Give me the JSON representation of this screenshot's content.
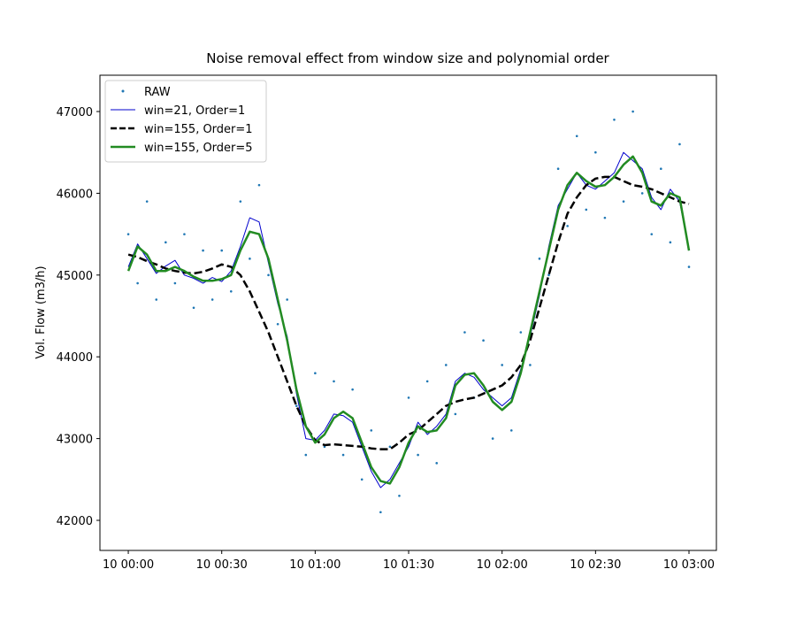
{
  "chart_data": {
    "type": "line",
    "title": "Noise removal effect from window size and polynomial order",
    "y_label": "Vol. Flow (m3/h)",
    "x": [
      0,
      3,
      6,
      9,
      12,
      15,
      18,
      21,
      24,
      27,
      30,
      33,
      36,
      39,
      42,
      45,
      48,
      51,
      54,
      57,
      60,
      63,
      66,
      69,
      72,
      75,
      78,
      81,
      84,
      87,
      90,
      93,
      96,
      99,
      102,
      105,
      108,
      111,
      114,
      117,
      120,
      123,
      126,
      129,
      132,
      135,
      138,
      141,
      144,
      147,
      150,
      153,
      156,
      159,
      162,
      165,
      168,
      171,
      174,
      177,
      180
    ],
    "xlim": [
      -9.1,
      188.8
    ],
    "xticks": [
      {
        "value": 0,
        "label": "10 00:00"
      },
      {
        "value": 30,
        "label": "10 00:30"
      },
      {
        "value": 60,
        "label": "10 01:00"
      },
      {
        "value": 90,
        "label": "10 01:30"
      },
      {
        "value": 120,
        "label": "10 02:00"
      },
      {
        "value": 150,
        "label": "10 02:30"
      },
      {
        "value": 180,
        "label": "10 03:00"
      }
    ],
    "ylim": [
      41632,
      47444
    ],
    "yticks": [
      42000,
      43000,
      44000,
      45000,
      46000,
      47000
    ],
    "legend": "upper left",
    "series": [
      {
        "name": "RAW",
        "color": "#1f77b4",
        "style": "points",
        "linewidth": 1,
        "values": [
          45500,
          44900,
          45900,
          44700,
          45400,
          44900,
          45500,
          44600,
          45300,
          44700,
          45300,
          44800,
          45900,
          45200,
          46100,
          45000,
          44400,
          44700,
          43400,
          42800,
          43800,
          42900,
          43700,
          42800,
          43600,
          42500,
          43100,
          42100,
          42900,
          42300,
          43500,
          42800,
          43700,
          42700,
          43900,
          43300,
          44300,
          43500,
          44200,
          43000,
          43900,
          43100,
          44300,
          43900,
          45200,
          45000,
          46300,
          45600,
          46700,
          45800,
          46500,
          45700,
          46900,
          45900,
          47000,
          46000,
          45500,
          46300,
          45400,
          46600,
          45100
        ]
      },
      {
        "name": "win=21, Order=1",
        "color": "#0000cd",
        "style": "solid",
        "linewidth": 1,
        "values": [
          45100,
          45380,
          45200,
          45020,
          45110,
          45180,
          45000,
          44960,
          44900,
          44970,
          44920,
          45050,
          45350,
          45700,
          45650,
          45150,
          44650,
          44250,
          43550,
          43000,
          42980,
          43100,
          43300,
          43280,
          43200,
          42900,
          42600,
          42400,
          42500,
          42700,
          42900,
          43200,
          43050,
          43150,
          43300,
          43700,
          43800,
          43750,
          43600,
          43500,
          43400,
          43500,
          43850,
          44250,
          44750,
          45350,
          45850,
          46050,
          46250,
          46100,
          46050,
          46150,
          46250,
          46500,
          46400,
          46300,
          45950,
          45800,
          46050,
          45900,
          45300
        ]
      },
      {
        "name": "win=155, Order=1",
        "color": "#000000",
        "style": "dashed",
        "linewidth": 2.5,
        "values": [
          45250,
          45220,
          45170,
          45130,
          45080,
          45050,
          45030,
          45020,
          45040,
          45080,
          45130,
          45100,
          45000,
          44800,
          44550,
          44300,
          44000,
          43700,
          43400,
          43150,
          42980,
          42920,
          42930,
          42920,
          42910,
          42900,
          42880,
          42870,
          42870,
          42950,
          43050,
          43100,
          43200,
          43300,
          43400,
          43450,
          43480,
          43500,
          43550,
          43600,
          43650,
          43750,
          43900,
          44200,
          44600,
          45000,
          45400,
          45750,
          45950,
          46100,
          46180,
          46200,
          46200,
          46150,
          46100,
          46080,
          46050,
          46000,
          45950,
          45900,
          45870
        ]
      },
      {
        "name": "win=155, Order=5",
        "color": "#228b22",
        "style": "solid",
        "linewidth": 2.5,
        "values": [
          45050,
          45350,
          45250,
          45050,
          45050,
          45100,
          45050,
          44980,
          44930,
          44930,
          44950,
          45000,
          45300,
          45530,
          45500,
          45200,
          44700,
          44200,
          43600,
          43150,
          42950,
          43050,
          43250,
          43330,
          43250,
          42950,
          42650,
          42480,
          42450,
          42650,
          42950,
          43150,
          43080,
          43100,
          43250,
          43650,
          43780,
          43800,
          43650,
          43450,
          43350,
          43450,
          43800,
          44300,
          44800,
          45300,
          45800,
          46100,
          46250,
          46150,
          46080,
          46100,
          46200,
          46350,
          46450,
          46250,
          45900,
          45850,
          46000,
          45950,
          45300
        ]
      }
    ]
  }
}
